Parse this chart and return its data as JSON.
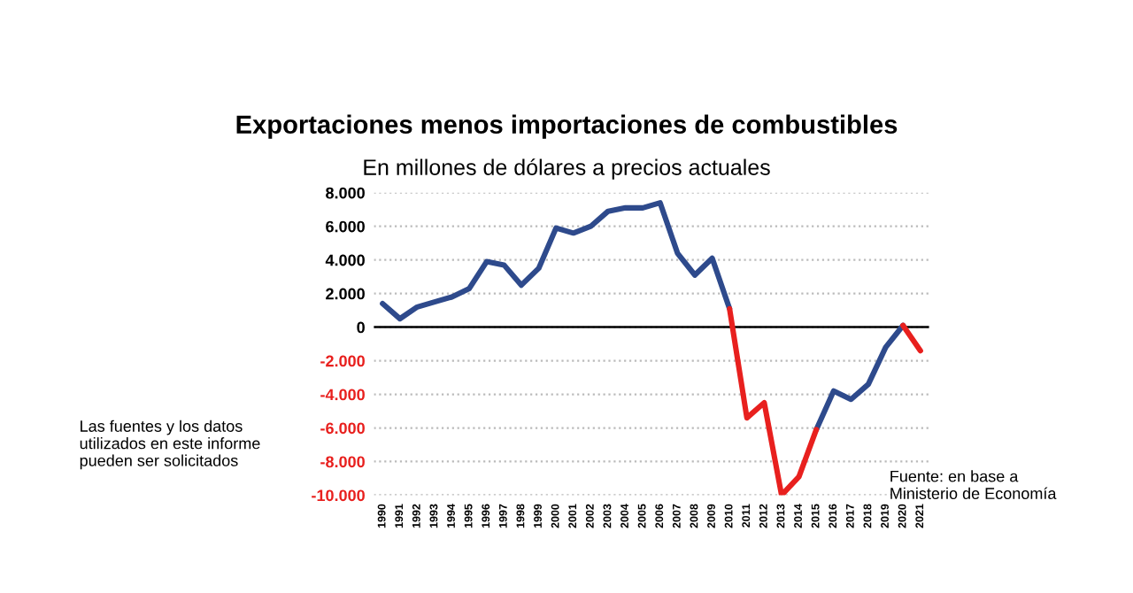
{
  "chart_data": {
    "type": "line",
    "title": "Exportaciones menos importaciones de combustibles",
    "subtitle": "En millones de dólares a precios actuales",
    "categories": [
      "1990",
      "1991",
      "1992",
      "1993",
      "1994",
      "1995",
      "1996",
      "1997",
      "1998",
      "1999",
      "2000",
      "2001",
      "2002",
      "2003",
      "2004",
      "2005",
      "2006",
      "2007",
      "2008",
      "2009",
      "2010",
      "2011",
      "2012",
      "2013",
      "2014",
      "2015",
      "2016",
      "2017",
      "2018",
      "2019",
      "2020",
      "2021"
    ],
    "series": [
      {
        "color": "#2e4a8c",
        "values": [
          1400,
          500,
          1200,
          1500,
          1800,
          2300,
          3900,
          3700,
          2500,
          3500,
          5900,
          5600,
          6000,
          6900,
          7100,
          7100,
          7400,
          4400,
          3100,
          4100,
          1100,
          null,
          null,
          null,
          null,
          -6100,
          -3800,
          -4300,
          -3400,
          -1200,
          100,
          null
        ]
      },
      {
        "color": "#e8201e",
        "values": [
          null,
          null,
          null,
          null,
          null,
          null,
          null,
          null,
          null,
          null,
          null,
          null,
          null,
          null,
          null,
          null,
          null,
          null,
          null,
          null,
          1100,
          -5400,
          -4500,
          -10000,
          -8900,
          -6100,
          null,
          null,
          null,
          null,
          100,
          -1400
        ]
      }
    ],
    "ylim": [
      -10000,
      8000
    ],
    "yticks": [
      {
        "value": -10000,
        "label": "-10.000"
      },
      {
        "value": -8000,
        "label": "-8.000"
      },
      {
        "value": -6000,
        "label": "-6.000"
      },
      {
        "value": -4000,
        "label": "-4.000"
      },
      {
        "value": -2000,
        "label": "-2.000"
      },
      0,
      {
        "value": 2000,
        "label": "2.000"
      },
      {
        "value": 4000,
        "label": "4.000"
      },
      {
        "value": 6000,
        "label": "6.000"
      },
      {
        "value": 8000,
        "label": "8.000"
      }
    ],
    "grid": "y",
    "ref_lines": [
      {
        "axis": "y",
        "value": 0,
        "color": "#000000"
      }
    ],
    "annotations": [
      "Las fuentes y los datos utilizados en este informe pueden ser solicitados",
      "Fuente: en base a Ministerio de Economía"
    ]
  }
}
